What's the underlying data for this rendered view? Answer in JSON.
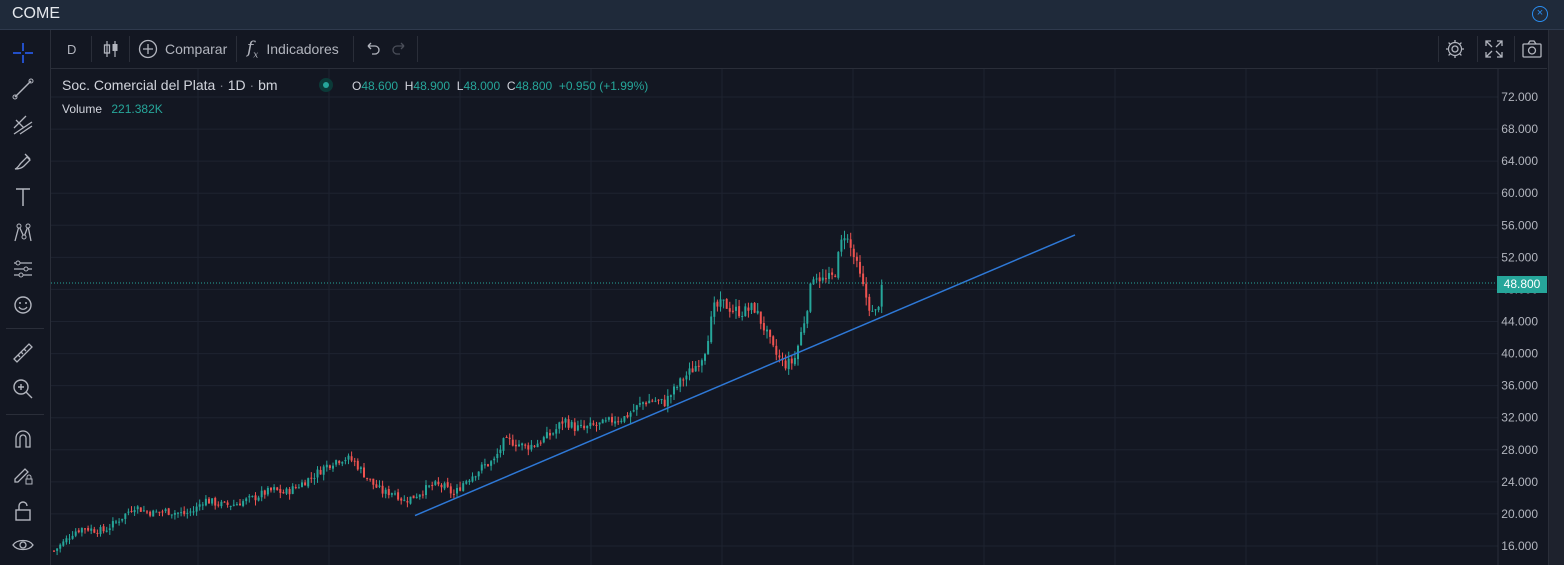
{
  "window": {
    "title": "COME"
  },
  "toolbar": {
    "interval": "D",
    "compare_label": "Comparar",
    "indicators_label": "Indicadores"
  },
  "legend": {
    "symbol": "Soc. Comercial del Plata",
    "interval": "1D",
    "exchange": "bm",
    "o_label": "O",
    "o": "48.600",
    "h_label": "H",
    "h": "48.900",
    "l_label": "L",
    "l": "48.000",
    "c_label": "C",
    "c": "48.800",
    "change": "+0.950 (+1.99%)",
    "volume_label": "Volume",
    "volume": "221.382K"
  },
  "last_price": "48.800",
  "colors": {
    "up": "#26a69a",
    "down": "#ef5350",
    "trendline": "#2962ff",
    "bg": "#131722"
  },
  "chart_data": {
    "type": "candlestick",
    "yticks": [
      "72.000",
      "68.000",
      "64.000",
      "60.000",
      "56.000",
      "52.000",
      "48.000",
      "44.000",
      "40.000",
      "36.000",
      "32.000",
      "28.000",
      "24.000",
      "20.000",
      "16.000"
    ],
    "ylim": [
      16,
      72
    ],
    "last_close": 48.8,
    "close_trace": [
      [
        0,
        15.4
      ],
      [
        10,
        16.5
      ],
      [
        20,
        17.8
      ],
      [
        30,
        18.3
      ],
      [
        40,
        18.0
      ],
      [
        50,
        17.9
      ],
      [
        60,
        18.8
      ],
      [
        70,
        19.8
      ],
      [
        80,
        21.0
      ],
      [
        90,
        20.4
      ],
      [
        100,
        20.1
      ],
      [
        110,
        20.4
      ],
      [
        120,
        20.2
      ],
      [
        130,
        20.0
      ],
      [
        140,
        20.4
      ],
      [
        150,
        21.8
      ],
      [
        160,
        21.4
      ],
      [
        170,
        21.1
      ],
      [
        180,
        21.2
      ],
      [
        190,
        21.6
      ],
      [
        200,
        22.0
      ],
      [
        210,
        22.6
      ],
      [
        220,
        23.0
      ],
      [
        230,
        22.6
      ],
      [
        240,
        23.2
      ],
      [
        250,
        24.0
      ],
      [
        260,
        24.8
      ],
      [
        270,
        25.8
      ],
      [
        280,
        26.6
      ],
      [
        290,
        27.0
      ],
      [
        300,
        26.6
      ],
      [
        310,
        25.0
      ],
      [
        320,
        23.6
      ],
      [
        330,
        22.6
      ],
      [
        340,
        22.8
      ],
      [
        350,
        21.6
      ],
      [
        360,
        22.2
      ],
      [
        370,
        23.0
      ],
      [
        380,
        23.6
      ],
      [
        390,
        23.4
      ],
      [
        400,
        22.4
      ],
      [
        410,
        24.0
      ],
      [
        420,
        25.0
      ],
      [
        430,
        26.0
      ],
      [
        440,
        26.6
      ],
      [
        450,
        29.0
      ],
      [
        460,
        29.0
      ],
      [
        470,
        28.4
      ],
      [
        480,
        28.6
      ],
      [
        490,
        29.4
      ],
      [
        500,
        30.2
      ],
      [
        510,
        31.8
      ],
      [
        520,
        30.8
      ],
      [
        530,
        30.6
      ],
      [
        540,
        31.0
      ],
      [
        550,
        31.2
      ],
      [
        560,
        31.8
      ],
      [
        570,
        32.0
      ],
      [
        580,
        33.0
      ],
      [
        590,
        34.0
      ],
      [
        600,
        34.2
      ],
      [
        610,
        33.8
      ],
      [
        620,
        35.4
      ],
      [
        630,
        37.0
      ],
      [
        640,
        38.2
      ],
      [
        650,
        40.0
      ],
      [
        660,
        45.6
      ],
      [
        670,
        46.2
      ],
      [
        680,
        45.4
      ],
      [
        690,
        45.2
      ],
      [
        700,
        45.8
      ],
      [
        710,
        43.2
      ],
      [
        720,
        40.2
      ],
      [
        730,
        38.6
      ],
      [
        740,
        39.0
      ],
      [
        750,
        44.0
      ],
      [
        760,
        50.2
      ],
      [
        770,
        49.0
      ],
      [
        780,
        49.6
      ],
      [
        790,
        55.2
      ],
      [
        800,
        52.0
      ],
      [
        810,
        47.8
      ],
      [
        820,
        44.4
      ],
      [
        830,
        48.8
      ]
    ],
    "trendline": {
      "start": [
        364,
        19.8
      ],
      "end": [
        1024,
        54.8
      ]
    }
  }
}
